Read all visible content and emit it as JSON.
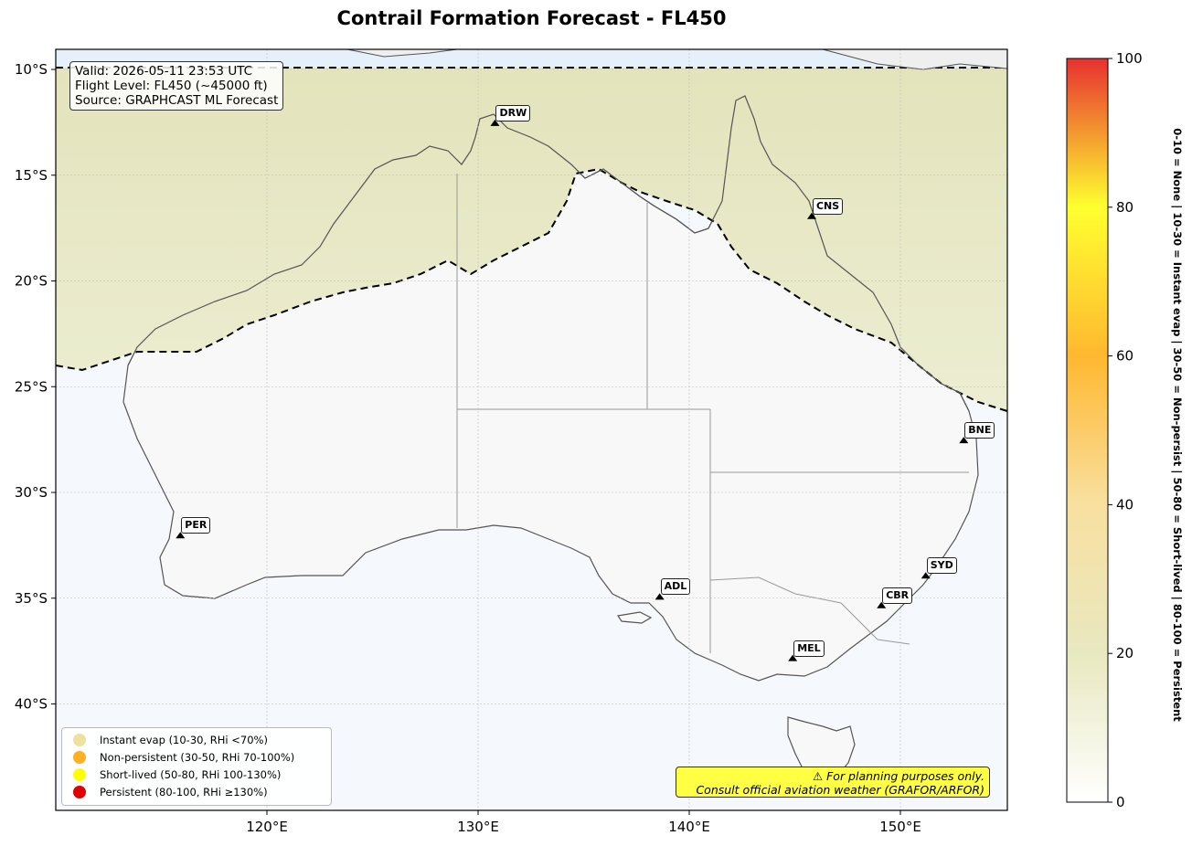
{
  "title": "Contrail Formation Forecast - FL450",
  "info": {
    "valid": "Valid: 2026-05-11 23:53 UTC",
    "flight_level": "Flight Level: FL450 (~45000 ft)",
    "source": "Source: GRAPHCAST ML Forecast"
  },
  "lat_ticks": [
    "10°S",
    "15°S",
    "20°S",
    "25°S",
    "30°S",
    "35°S",
    "40°S"
  ],
  "lon_ticks": [
    "120°E",
    "130°E",
    "140°E",
    "150°E"
  ],
  "cities": [
    {
      "code": "DRW",
      "lon": 130.8,
      "lat": -12.5
    },
    {
      "code": "CNS",
      "lon": 145.8,
      "lat": -16.9
    },
    {
      "code": "BNE",
      "lon": 153.0,
      "lat": -27.5
    },
    {
      "code": "PER",
      "lon": 115.9,
      "lat": -32.0
    },
    {
      "code": "ADL",
      "lon": 138.6,
      "lat": -34.9
    },
    {
      "code": "SYD",
      "lon": 151.2,
      "lat": -33.9
    },
    {
      "code": "CBR",
      "lon": 149.1,
      "lat": -35.3
    },
    {
      "code": "MEL",
      "lon": 144.9,
      "lat": -37.8
    }
  ],
  "legend": [
    {
      "label": "Instant evap (10-30, RHi <70%)",
      "color": "#f0e0a0"
    },
    {
      "label": "Non-persistent (30-50, RHi 70-100%)",
      "color": "#ffb020"
    },
    {
      "label": "Short-lived (50-80, RHi 100-130%)",
      "color": "#ffff00"
    },
    {
      "label": "Persistent (80-100, RHi ≥130%)",
      "color": "#e00000"
    }
  ],
  "disclaimer": {
    "line1": "⚠ For planning purposes only.",
    "line2": "Consult official aviation weather (GRAFOR/ARFOR)"
  },
  "colorbar": {
    "ticks": [
      "0",
      "20",
      "40",
      "60",
      "80",
      "100"
    ],
    "title": "0-10 = None  |  10-30 = Instant evap  |  30-50 = Non-persist  |  50-80 = Short-lived  |  80-100 = Persistent"
  },
  "colors": {
    "ocean": "#f5f9fd",
    "land": "#f8f8f8",
    "north_band": "#e8e8c4",
    "coast": "#555555"
  }
}
